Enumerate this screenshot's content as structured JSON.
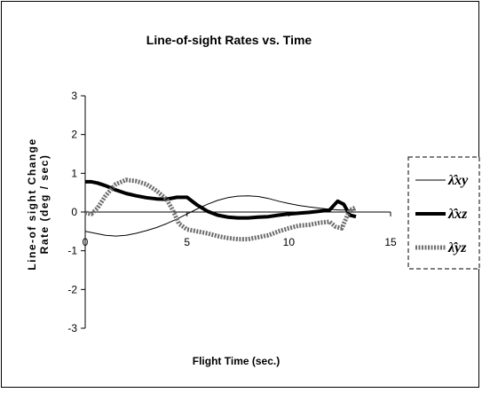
{
  "chart_data": {
    "type": "line",
    "title": "Line-of-sight Rates vs. Time",
    "xlabel": "Flight Time (sec.)",
    "ylabel_line1": "Line-of sight Change",
    "ylabel_line2": "Rate (deg / sec)",
    "xlim": [
      0,
      15
    ],
    "ylim": [
      -3,
      3
    ],
    "xticks": [
      0,
      5,
      10,
      15
    ],
    "yticks": [
      3,
      2,
      1,
      0,
      -1,
      -2,
      -3
    ],
    "grid": false,
    "legend_position": "right",
    "series": [
      {
        "name": "λ̇xy",
        "legend_label": "λ̂xy",
        "color": "#000000",
        "style": "thin",
        "x": [
          0,
          0.5,
          1,
          1.5,
          2,
          2.5,
          3,
          3.5,
          4,
          4.5,
          5,
          5.5,
          6,
          6.5,
          7,
          7.5,
          8,
          8.5,
          9,
          9.5,
          10,
          10.5,
          11,
          11.5,
          12,
          12.5,
          13,
          13.3
        ],
        "values": [
          -0.5,
          -0.55,
          -0.6,
          -0.62,
          -0.6,
          -0.55,
          -0.48,
          -0.4,
          -0.3,
          -0.18,
          -0.05,
          0.08,
          0.2,
          0.3,
          0.37,
          0.41,
          0.42,
          0.4,
          0.35,
          0.28,
          0.22,
          0.17,
          0.13,
          0.1,
          0.07,
          0.05,
          0.05,
          0.05
        ]
      },
      {
        "name": "λ̇xz",
        "legend_label": "λ̂xz",
        "color": "#000000",
        "style": "thick",
        "x": [
          0,
          0.3,
          0.6,
          1,
          1.5,
          2,
          2.5,
          3,
          3.5,
          4,
          4.5,
          5,
          5.5,
          6,
          6.5,
          7,
          7.5,
          8,
          8.5,
          9,
          9.5,
          10,
          10.5,
          11,
          11.5,
          12,
          12.4,
          12.7,
          13,
          13.3
        ],
        "values": [
          0.78,
          0.78,
          0.75,
          0.68,
          0.57,
          0.48,
          0.42,
          0.37,
          0.34,
          0.33,
          0.38,
          0.38,
          0.18,
          0.02,
          -0.08,
          -0.13,
          -0.15,
          -0.15,
          -0.13,
          -0.12,
          -0.08,
          -0.05,
          -0.03,
          -0.01,
          0.02,
          0.05,
          0.28,
          0.2,
          -0.08,
          -0.12
        ]
      },
      {
        "name": "λ̇yz",
        "legend_label": "λ̂yz",
        "color": "#6e6e6e",
        "style": "thick-dotted",
        "x": [
          0,
          0.3,
          0.6,
          1,
          1.5,
          2,
          2.5,
          3,
          3.5,
          4,
          4.3,
          4.6,
          5,
          5.5,
          6,
          6.5,
          7,
          7.5,
          8,
          8.5,
          9,
          9.5,
          10,
          10.5,
          11,
          11.5,
          12,
          12.3,
          12.6,
          13,
          13.3
        ],
        "values": [
          -0.02,
          -0.05,
          0.1,
          0.42,
          0.72,
          0.83,
          0.8,
          0.72,
          0.55,
          0.33,
          0.05,
          -0.3,
          -0.45,
          -0.5,
          -0.55,
          -0.62,
          -0.67,
          -0.7,
          -0.7,
          -0.65,
          -0.6,
          -0.5,
          -0.42,
          -0.35,
          -0.33,
          -0.28,
          -0.25,
          -0.38,
          -0.42,
          0.05,
          0.12
        ]
      }
    ]
  }
}
